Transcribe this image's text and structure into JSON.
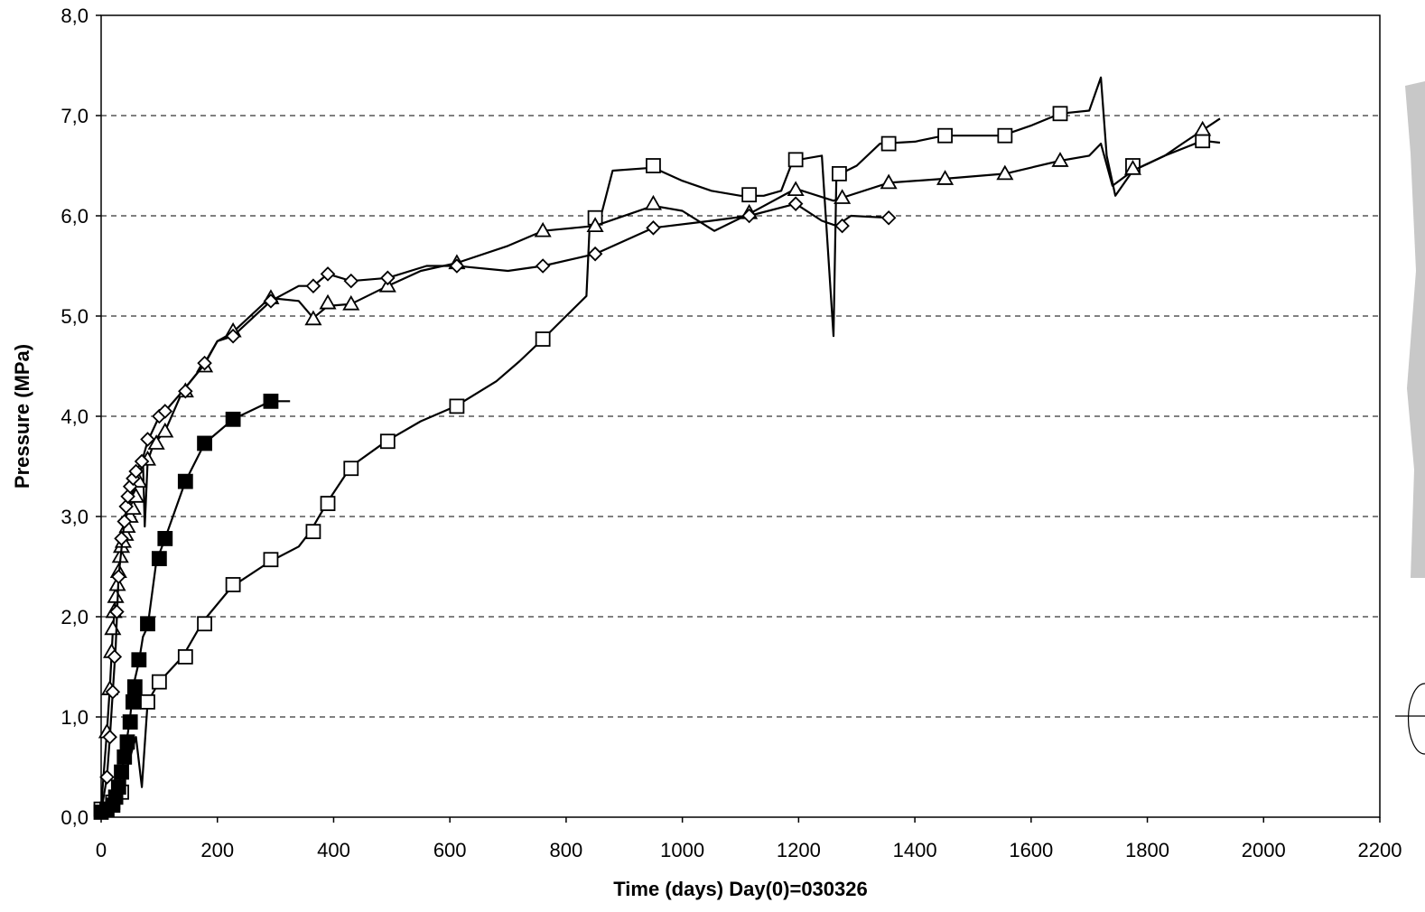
{
  "chart_data": {
    "type": "line",
    "title": "",
    "xlabel": "Time  (days)  Day(0)=030326",
    "ylabel": "Pressure (MPa)",
    "xlim": [
      0,
      2200
    ],
    "ylim": [
      0,
      8
    ],
    "x_ticks": [
      "0",
      "200",
      "400",
      "600",
      "800",
      "1000",
      "1200",
      "1400",
      "1600",
      "1800",
      "2000",
      "2200"
    ],
    "y_ticks": [
      "0,0",
      "1,0",
      "2,0",
      "3,0",
      "4,0",
      "5,0",
      "6,0",
      "7,0",
      "8,0"
    ],
    "grid": "horizontal dashed",
    "series": [
      {
        "marker": "open-square",
        "line": [
          [
            0,
            0.1
          ],
          [
            30,
            0.2
          ],
          [
            60,
            0.8
          ],
          [
            70,
            0.3
          ],
          [
            80,
            1.15
          ],
          [
            100,
            1.35
          ],
          [
            140,
            1.6
          ],
          [
            175,
            1.95
          ],
          [
            225,
            2.3
          ],
          [
            290,
            2.55
          ],
          [
            340,
            2.7
          ],
          [
            360,
            2.85
          ],
          [
            390,
            3.15
          ],
          [
            430,
            3.5
          ],
          [
            490,
            3.75
          ],
          [
            550,
            3.95
          ],
          [
            610,
            4.1
          ],
          [
            680,
            4.35
          ],
          [
            720,
            4.55
          ],
          [
            760,
            4.77
          ],
          [
            800,
            5.0
          ],
          [
            835,
            5.2
          ],
          [
            840,
            5.85
          ],
          [
            850,
            5.98
          ],
          [
            860,
            6.0
          ],
          [
            880,
            6.45
          ],
          [
            950,
            6.48
          ],
          [
            1000,
            6.35
          ],
          [
            1050,
            6.25
          ],
          [
            1100,
            6.2
          ],
          [
            1140,
            6.2
          ],
          [
            1170,
            6.25
          ],
          [
            1190,
            6.55
          ],
          [
            1240,
            6.6
          ],
          [
            1260,
            4.8
          ],
          [
            1265,
            6.4
          ],
          [
            1300,
            6.5
          ],
          [
            1340,
            6.72
          ],
          [
            1400,
            6.74
          ],
          [
            1450,
            6.8
          ],
          [
            1550,
            6.8
          ],
          [
            1600,
            6.9
          ],
          [
            1650,
            7.02
          ],
          [
            1700,
            7.05
          ],
          [
            1720,
            7.38
          ],
          [
            1730,
            6.6
          ],
          [
            1745,
            6.2
          ],
          [
            1775,
            6.45
          ],
          [
            1830,
            6.6
          ],
          [
            1895,
            6.75
          ],
          [
            1925,
            6.73
          ]
        ],
        "markers": [
          [
            0,
            0.08
          ],
          [
            20,
            0.15
          ],
          [
            35,
            0.25
          ],
          [
            80,
            1.15
          ],
          [
            100,
            1.35
          ],
          [
            145,
            1.6
          ],
          [
            178,
            1.93
          ],
          [
            227,
            2.32
          ],
          [
            292,
            2.57
          ],
          [
            365,
            2.85
          ],
          [
            390,
            3.13
          ],
          [
            430,
            3.48
          ],
          [
            493,
            3.75
          ],
          [
            612,
            4.1
          ],
          [
            760,
            4.77
          ],
          [
            850,
            5.98
          ],
          [
            950,
            6.5
          ],
          [
            1115,
            6.21
          ],
          [
            1195,
            6.56
          ],
          [
            1270,
            6.42
          ],
          [
            1355,
            6.72
          ],
          [
            1452,
            6.8
          ],
          [
            1555,
            6.8
          ],
          [
            1650,
            7.02
          ],
          [
            1775,
            6.5
          ],
          [
            1895,
            6.75
          ]
        ]
      },
      {
        "marker": "open-triangle",
        "line": [
          [
            0,
            0.1
          ],
          [
            10,
            0.85
          ],
          [
            15,
            1.3
          ],
          [
            20,
            1.85
          ],
          [
            25,
            2.2
          ],
          [
            35,
            2.75
          ],
          [
            45,
            3.05
          ],
          [
            55,
            3.25
          ],
          [
            65,
            3.4
          ],
          [
            72,
            3.55
          ],
          [
            75,
            2.9
          ],
          [
            80,
            3.55
          ],
          [
            90,
            3.72
          ],
          [
            110,
            3.85
          ],
          [
            140,
            4.25
          ],
          [
            175,
            4.5
          ],
          [
            200,
            4.75
          ],
          [
            225,
            4.83
          ],
          [
            290,
            5.18
          ],
          [
            340,
            5.15
          ],
          [
            365,
            4.98
          ],
          [
            390,
            5.1
          ],
          [
            430,
            5.12
          ],
          [
            493,
            5.3
          ],
          [
            550,
            5.45
          ],
          [
            612,
            5.53
          ],
          [
            700,
            5.7
          ],
          [
            760,
            5.85
          ],
          [
            850,
            5.9
          ],
          [
            950,
            6.1
          ],
          [
            1000,
            6.05
          ],
          [
            1055,
            5.85
          ],
          [
            1115,
            6.02
          ],
          [
            1195,
            6.27
          ],
          [
            1260,
            6.15
          ],
          [
            1275,
            6.18
          ],
          [
            1355,
            6.33
          ],
          [
            1452,
            6.37
          ],
          [
            1555,
            6.42
          ],
          [
            1650,
            6.55
          ],
          [
            1700,
            6.6
          ],
          [
            1720,
            6.72
          ],
          [
            1740,
            6.3
          ],
          [
            1775,
            6.45
          ],
          [
            1830,
            6.6
          ],
          [
            1860,
            6.72
          ],
          [
            1925,
            6.97
          ]
        ],
        "markers": [
          [
            10,
            0.85
          ],
          [
            15,
            1.28
          ],
          [
            18,
            1.65
          ],
          [
            20,
            1.88
          ],
          [
            22,
            2.05
          ],
          [
            25,
            2.2
          ],
          [
            28,
            2.32
          ],
          [
            30,
            2.45
          ],
          [
            33,
            2.6
          ],
          [
            35,
            2.7
          ],
          [
            38,
            2.75
          ],
          [
            42,
            2.82
          ],
          [
            45,
            2.9
          ],
          [
            50,
            3.0
          ],
          [
            55,
            3.08
          ],
          [
            60,
            3.2
          ],
          [
            65,
            3.35
          ],
          [
            80,
            3.57
          ],
          [
            95,
            3.73
          ],
          [
            110,
            3.85
          ],
          [
            145,
            4.25
          ],
          [
            178,
            4.5
          ],
          [
            227,
            4.85
          ],
          [
            292,
            5.18
          ],
          [
            365,
            4.97
          ],
          [
            390,
            5.13
          ],
          [
            430,
            5.12
          ],
          [
            493,
            5.3
          ],
          [
            612,
            5.53
          ],
          [
            760,
            5.85
          ],
          [
            850,
            5.9
          ],
          [
            950,
            6.12
          ],
          [
            1115,
            6.03
          ],
          [
            1195,
            6.26
          ],
          [
            1275,
            6.18
          ],
          [
            1355,
            6.33
          ],
          [
            1452,
            6.37
          ],
          [
            1555,
            6.42
          ],
          [
            1650,
            6.55
          ],
          [
            1775,
            6.47
          ],
          [
            1895,
            6.86
          ]
        ]
      },
      {
        "marker": "open-diamond",
        "line": [
          [
            0,
            0.05
          ],
          [
            10,
            0.4
          ],
          [
            15,
            0.8
          ],
          [
            20,
            1.25
          ],
          [
            25,
            1.7
          ],
          [
            30,
            2.4
          ],
          [
            40,
            2.95
          ],
          [
            50,
            3.3
          ],
          [
            60,
            3.45
          ],
          [
            70,
            3.55
          ],
          [
            80,
            3.75
          ],
          [
            100,
            4.0
          ],
          [
            110,
            4.05
          ],
          [
            140,
            4.25
          ],
          [
            178,
            4.52
          ],
          [
            200,
            4.75
          ],
          [
            227,
            4.8
          ],
          [
            292,
            5.15
          ],
          [
            340,
            5.3
          ],
          [
            365,
            5.3
          ],
          [
            390,
            5.42
          ],
          [
            430,
            5.35
          ],
          [
            493,
            5.38
          ],
          [
            560,
            5.5
          ],
          [
            612,
            5.5
          ],
          [
            700,
            5.45
          ],
          [
            760,
            5.5
          ],
          [
            850,
            5.62
          ],
          [
            950,
            5.88
          ],
          [
            1050,
            5.95
          ],
          [
            1115,
            6.0
          ],
          [
            1195,
            6.12
          ],
          [
            1240,
            5.95
          ],
          [
            1265,
            5.9
          ],
          [
            1290,
            6.0
          ],
          [
            1355,
            5.98
          ]
        ],
        "markers": [
          [
            10,
            0.4
          ],
          [
            15,
            0.8
          ],
          [
            20,
            1.25
          ],
          [
            23,
            1.6
          ],
          [
            27,
            2.05
          ],
          [
            30,
            2.4
          ],
          [
            35,
            2.78
          ],
          [
            40,
            2.95
          ],
          [
            43,
            3.1
          ],
          [
            46,
            3.2
          ],
          [
            50,
            3.3
          ],
          [
            55,
            3.38
          ],
          [
            60,
            3.45
          ],
          [
            70,
            3.55
          ],
          [
            80,
            3.77
          ],
          [
            100,
            4.0
          ],
          [
            110,
            4.05
          ],
          [
            145,
            4.25
          ],
          [
            178,
            4.53
          ],
          [
            227,
            4.8
          ],
          [
            292,
            5.15
          ],
          [
            365,
            5.3
          ],
          [
            390,
            5.42
          ],
          [
            430,
            5.35
          ],
          [
            493,
            5.38
          ],
          [
            612,
            5.5
          ],
          [
            760,
            5.5
          ],
          [
            850,
            5.62
          ],
          [
            950,
            5.88
          ],
          [
            1115,
            6.0
          ],
          [
            1195,
            6.12
          ],
          [
            1275,
            5.9
          ],
          [
            1355,
            5.98
          ]
        ]
      },
      {
        "marker": "filled-square",
        "line": [
          [
            0,
            0.05
          ],
          [
            20,
            0.1
          ],
          [
            30,
            0.3
          ],
          [
            40,
            0.6
          ],
          [
            50,
            1.0
          ],
          [
            55,
            1.3
          ],
          [
            65,
            1.55
          ],
          [
            72,
            1.8
          ],
          [
            80,
            1.9
          ],
          [
            95,
            2.55
          ],
          [
            110,
            2.78
          ],
          [
            145,
            3.35
          ],
          [
            178,
            3.73
          ],
          [
            227,
            3.97
          ],
          [
            292,
            4.15
          ],
          [
            325,
            4.15
          ]
        ],
        "markers": [
          [
            0,
            0.05
          ],
          [
            10,
            0.08
          ],
          [
            20,
            0.12
          ],
          [
            25,
            0.2
          ],
          [
            30,
            0.3
          ],
          [
            35,
            0.45
          ],
          [
            40,
            0.6
          ],
          [
            45,
            0.75
          ],
          [
            50,
            0.95
          ],
          [
            55,
            1.15
          ],
          [
            58,
            1.3
          ],
          [
            65,
            1.57
          ],
          [
            80,
            1.93
          ],
          [
            100,
            2.58
          ],
          [
            110,
            2.78
          ],
          [
            145,
            3.35
          ],
          [
            178,
            3.73
          ],
          [
            227,
            3.97
          ],
          [
            292,
            4.15
          ]
        ]
      }
    ]
  }
}
